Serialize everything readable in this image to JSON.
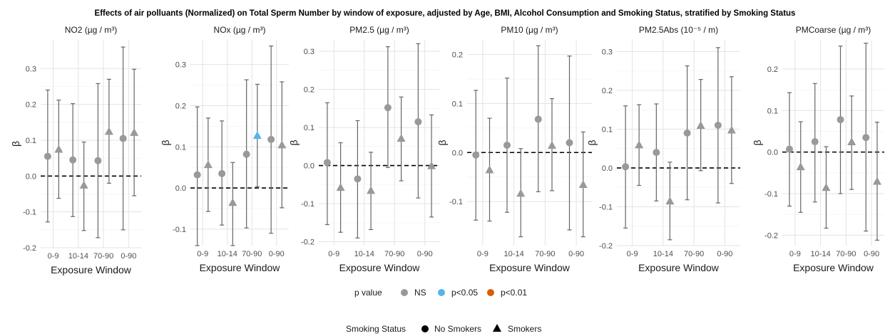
{
  "title": "Effects of air polluants (Normalized) on Total Sperm Number by window of exposure, adjusted by Age, BMI, Alcohol Consumption and Smoking Status, stratified by Smoking Status",
  "colors": {
    "NS": "#999999",
    "p<0.05": "#56b4e9",
    "p<0.01": "#d55e00",
    "grid": "#e3e3e3",
    "errorbar": "#666666"
  },
  "legend_pvalue": {
    "title": "p value",
    "items": [
      "NS",
      "p<0.05",
      "p<0.01"
    ]
  },
  "legend_smoking": {
    "title": "Smoking Status",
    "items": [
      "No Smokers",
      "Smokers"
    ]
  },
  "chart_data": [
    {
      "type": "scatter",
      "title": "NO2 (µg / m³)",
      "xlabel": "Exposure Window",
      "ylabel": "β",
      "categories": [
        "0-9",
        "10-14",
        "70-90",
        "0-90"
      ],
      "ylim": [
        -0.2,
        0.38
      ],
      "yticks": [
        -0.2,
        -0.1,
        0.0,
        0.1,
        0.2,
        0.3
      ],
      "reference_line": 0,
      "series": [
        {
          "name": "No Smokers",
          "values": [
            0.055,
            0.045,
            0.043,
            0.105
          ],
          "lower": [
            -0.128,
            -0.113,
            -0.172,
            -0.15
          ],
          "upper": [
            0.24,
            0.202,
            0.258,
            0.36
          ],
          "significance": [
            "NS",
            "NS",
            "NS",
            "NS"
          ]
        },
        {
          "name": "Smokers",
          "values": [
            0.075,
            -0.025,
            0.125,
            0.122
          ],
          "lower": [
            -0.062,
            -0.152,
            -0.02,
            -0.055
          ],
          "upper": [
            0.212,
            0.095,
            0.27,
            0.298
          ],
          "significance": [
            "NS",
            "NS",
            "NS",
            "NS"
          ]
        }
      ]
    },
    {
      "type": "scatter",
      "title": "NOx (µg / m³)",
      "xlabel": "Exposure Window",
      "ylabel": "β",
      "categories": [
        "0-9",
        "10-14",
        "70-90",
        "0-90"
      ],
      "ylim": [
        -0.14,
        0.36
      ],
      "yticks": [
        -0.1,
        0.0,
        0.1,
        0.2,
        0.3
      ],
      "reference_line": 0,
      "series": [
        {
          "name": "No Smokers",
          "values": [
            0.032,
            0.035,
            0.082,
            0.118
          ],
          "lower": [
            -0.14,
            -0.09,
            -0.097,
            -0.11
          ],
          "upper": [
            0.197,
            0.163,
            0.263,
            0.345
          ],
          "significance": [
            "NS",
            "NS",
            "NS",
            "NS"
          ]
        },
        {
          "name": "Smokers",
          "values": [
            0.057,
            -0.035,
            0.128,
            0.105
          ],
          "lower": [
            -0.057,
            -0.14,
            0.003,
            -0.048
          ],
          "upper": [
            0.17,
            0.062,
            0.252,
            0.258
          ],
          "significance": [
            "NS",
            "NS",
            "p<0.05",
            "NS"
          ]
        }
      ]
    },
    {
      "type": "scatter",
      "title": "PM2.5 (µg / m³)",
      "xlabel": "Exposure Window",
      "ylabel": "β",
      "categories": [
        "0-9",
        "10-14",
        "70-90",
        "0-90"
      ],
      "ylim": [
        -0.21,
        0.33
      ],
      "yticks": [
        -0.2,
        -0.1,
        0.0,
        0.1,
        0.2,
        0.3
      ],
      "reference_line": 0,
      "series": [
        {
          "name": "No Smokers",
          "values": [
            0.008,
            -0.035,
            0.152,
            0.115
          ],
          "lower": [
            -0.155,
            -0.19,
            -0.005,
            -0.085
          ],
          "upper": [
            0.165,
            0.118,
            0.312,
            0.32
          ],
          "significance": [
            "NS",
            "NS",
            "NS",
            "NS"
          ]
        },
        {
          "name": "Smokers",
          "values": [
            -0.057,
            -0.065,
            0.072,
            0.0
          ],
          "lower": [
            -0.175,
            -0.168,
            -0.04,
            -0.135
          ],
          "upper": [
            0.06,
            0.035,
            0.18,
            0.133
          ],
          "significance": [
            "NS",
            "NS",
            "NS",
            "NS"
          ]
        }
      ]
    },
    {
      "type": "scatter",
      "title": "PM10 (µg / m³)",
      "xlabel": "Exposure Window",
      "ylabel": "β",
      "categories": [
        "0-9",
        "10-14",
        "70-90",
        "0-90"
      ],
      "ylim": [
        -0.19,
        0.23
      ],
      "yticks": [
        -0.1,
        0.0,
        0.1,
        0.2
      ],
      "reference_line": 0,
      "series": [
        {
          "name": "No Smokers",
          "values": [
            -0.005,
            0.015,
            0.068,
            0.02
          ],
          "lower": [
            -0.138,
            -0.122,
            -0.08,
            -0.158
          ],
          "upper": [
            0.127,
            0.152,
            0.218,
            0.197
          ],
          "significance": [
            "NS",
            "NS",
            "NS",
            "NS"
          ]
        },
        {
          "name": "Smokers",
          "values": [
            -0.035,
            -0.083,
            0.015,
            -0.065
          ],
          "lower": [
            -0.14,
            -0.172,
            -0.078,
            -0.172
          ],
          "upper": [
            0.07,
            0.008,
            0.11,
            0.042
          ],
          "significance": [
            "NS",
            "NS",
            "NS",
            "NS"
          ]
        }
      ]
    },
    {
      "type": "scatter",
      "title": "PM2.5Abs (10⁻⁵ / m)",
      "xlabel": "Exposure Window",
      "ylabel": "β",
      "categories": [
        "0-9",
        "10-14",
        "70-90",
        "0-90"
      ],
      "ylim": [
        -0.2,
        0.33
      ],
      "yticks": [
        -0.2,
        -0.1,
        0.0,
        0.1,
        0.2,
        0.3
      ],
      "reference_line": 0,
      "series": [
        {
          "name": "No Smokers",
          "values": [
            0.003,
            0.04,
            0.09,
            0.11
          ],
          "lower": [
            -0.155,
            -0.085,
            -0.082,
            -0.09
          ],
          "upper": [
            0.16,
            0.165,
            0.263,
            0.31
          ],
          "significance": [
            "NS",
            "NS",
            "NS",
            "NS"
          ]
        },
        {
          "name": "Smokers",
          "values": [
            0.06,
            -0.085,
            0.11,
            0.098
          ],
          "lower": [
            -0.045,
            -0.185,
            -0.007,
            -0.04
          ],
          "upper": [
            0.163,
            0.015,
            0.228,
            0.235
          ],
          "significance": [
            "NS",
            "NS",
            "NS",
            "NS"
          ]
        }
      ]
    },
    {
      "type": "scatter",
      "title": "PMCoarse (µg / m³)",
      "xlabel": "Exposure Window",
      "ylabel": "β",
      "categories": [
        "0-9",
        "10-14",
        "70-90",
        "0-90"
      ],
      "ylim": [
        -0.225,
        0.27
      ],
      "yticks": [
        -0.2,
        -0.1,
        0.0,
        0.1,
        0.2
      ],
      "reference_line": 0,
      "series": [
        {
          "name": "No Smokers",
          "values": [
            0.007,
            0.025,
            0.078,
            0.035
          ],
          "lower": [
            -0.13,
            -0.12,
            -0.1,
            -0.19
          ],
          "upper": [
            0.143,
            0.165,
            0.255,
            0.262
          ],
          "significance": [
            "NS",
            "NS",
            "NS",
            "NS"
          ]
        },
        {
          "name": "Smokers",
          "values": [
            -0.035,
            -0.085,
            0.025,
            -0.07
          ],
          "lower": [
            -0.145,
            -0.183,
            -0.09,
            -0.212
          ],
          "upper": [
            0.073,
            0.013,
            0.135,
            0.072
          ],
          "significance": [
            "NS",
            "NS",
            "NS",
            "NS"
          ]
        }
      ]
    }
  ]
}
